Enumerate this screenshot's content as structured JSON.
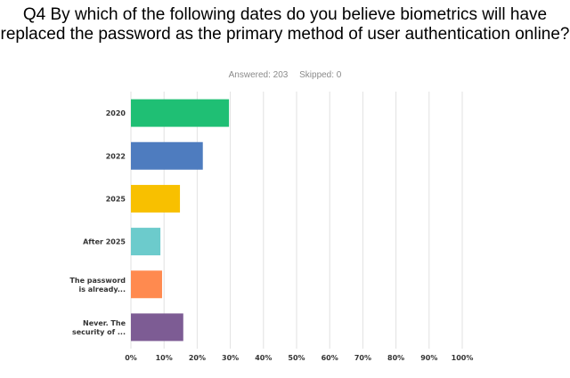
{
  "question": {
    "title": "Q4 By which of the following dates do you believe biometrics will have replaced the password as the primary method of user authentication online?"
  },
  "stats": {
    "answered": "Answered: 203",
    "skipped": "Skipped: 0"
  },
  "chart_data": {
    "type": "bar",
    "orientation": "horizontal",
    "categories": [
      "2020",
      "2022",
      "2025",
      "After 2025",
      "The password is already...",
      "Never. The security of ..."
    ],
    "category_lines": [
      [
        "2020"
      ],
      [
        "2022"
      ],
      [
        "2025"
      ],
      [
        "After 2025"
      ],
      [
        "The password",
        "is already..."
      ],
      [
        "Never. The",
        "security of ..."
      ]
    ],
    "values": [
      29.6,
      21.7,
      14.8,
      8.9,
      9.4,
      15.8
    ],
    "colors": [
      "#1fbf74",
      "#4e7cbf",
      "#f8c000",
      "#6ccbcc",
      "#ff8a4f",
      "#7d5c94"
    ],
    "xlim": [
      0,
      100
    ],
    "xticks": [
      "0%",
      "10%",
      "20%",
      "30%",
      "40%",
      "50%",
      "60%",
      "70%",
      "80%",
      "90%",
      "100%"
    ],
    "grid": true,
    "unit": "%"
  }
}
